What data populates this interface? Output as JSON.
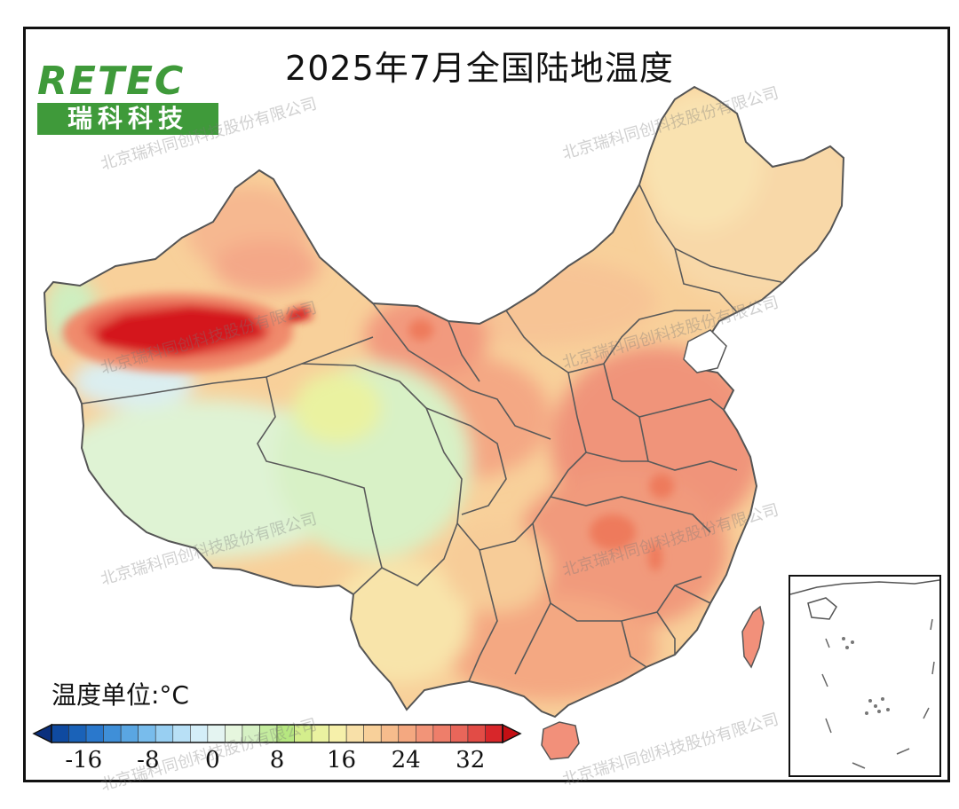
{
  "title": "2025年7月全国陆地温度",
  "logo": {
    "word": "RETEC",
    "subtitle": "瑞科科技"
  },
  "watermark": "北京瑞科同创科技股份有限公司",
  "legend": {
    "title": "温度单位:°C",
    "ticks": [
      "-16",
      "-8",
      "0",
      "8",
      "16",
      "24",
      "32"
    ],
    "min": -20,
    "max": 36,
    "step": 2,
    "colors": [
      "#0a2f7d",
      "#0f4aa0",
      "#1a62b8",
      "#2a78cc",
      "#3f8fd8",
      "#5aa6e2",
      "#78bcec",
      "#98cff2",
      "#b8e0f6",
      "#d4eef8",
      "#e4f4f1",
      "#e6f6de",
      "#d6f1c4",
      "#c4ec9e",
      "#b6e780",
      "#d4ee8c",
      "#eaf2a0",
      "#f6f0aa",
      "#f8e0a8",
      "#f8d09a",
      "#f6bc8c",
      "#f4a880",
      "#f29478",
      "#ee7e6a",
      "#e8665a",
      "#e24c46",
      "#d8262a",
      "#c40f14"
    ]
  },
  "colors": {
    "frame": "#111111",
    "boundary": "#555555",
    "logo_green": "#3f9a3a",
    "sea": "#ffffff"
  }
}
